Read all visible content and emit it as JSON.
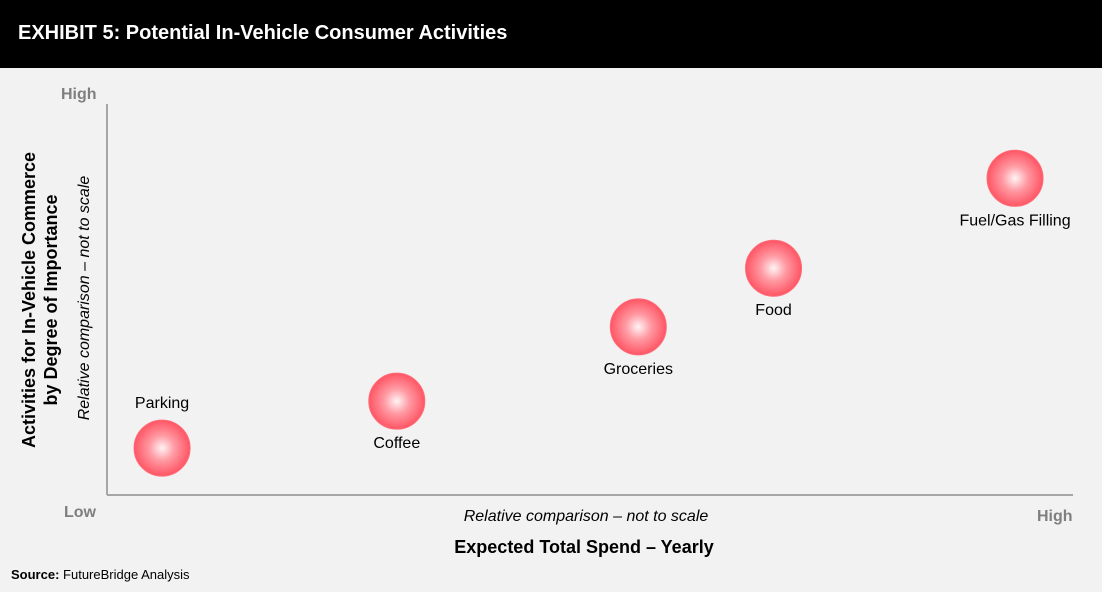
{
  "header": {
    "title": "EXHIBIT 5: Potential In-Vehicle Consumer Activities"
  },
  "source": {
    "label": "Source:",
    "text": "FutureBridge Analysis"
  },
  "chart_data": {
    "type": "scatter",
    "title": "EXHIBIT 5: Potential In-Vehicle Consumer Activities",
    "xlabel": "Expected Total Spend – Yearly",
    "ylabel_line1": "Activities for In-Vehicle Commerce",
    "ylabel_line2": "by Degree of Importance",
    "x_note": "Relative comparison – not to scale",
    "y_note": "Relative comparison – not to scale",
    "x_ticks": {
      "low": "Low",
      "high": "High"
    },
    "y_ticks": {
      "low": "Low",
      "high": "High"
    },
    "xlim": [
      0,
      100
    ],
    "ylim": [
      0,
      100
    ],
    "grid": false,
    "marker_color": "#ff6b78",
    "points": [
      {
        "label": "Parking",
        "x": 5.7,
        "y": 12,
        "label_position": "above"
      },
      {
        "label": "Coffee",
        "x": 30,
        "y": 24,
        "label_position": "below"
      },
      {
        "label": "Groceries",
        "x": 55,
        "y": 43,
        "label_position": "below"
      },
      {
        "label": "Food",
        "x": 69,
        "y": 58,
        "label_position": "below"
      },
      {
        "label": "Fuel/Gas Filling",
        "x": 94,
        "y": 81,
        "label_position": "below"
      }
    ]
  }
}
